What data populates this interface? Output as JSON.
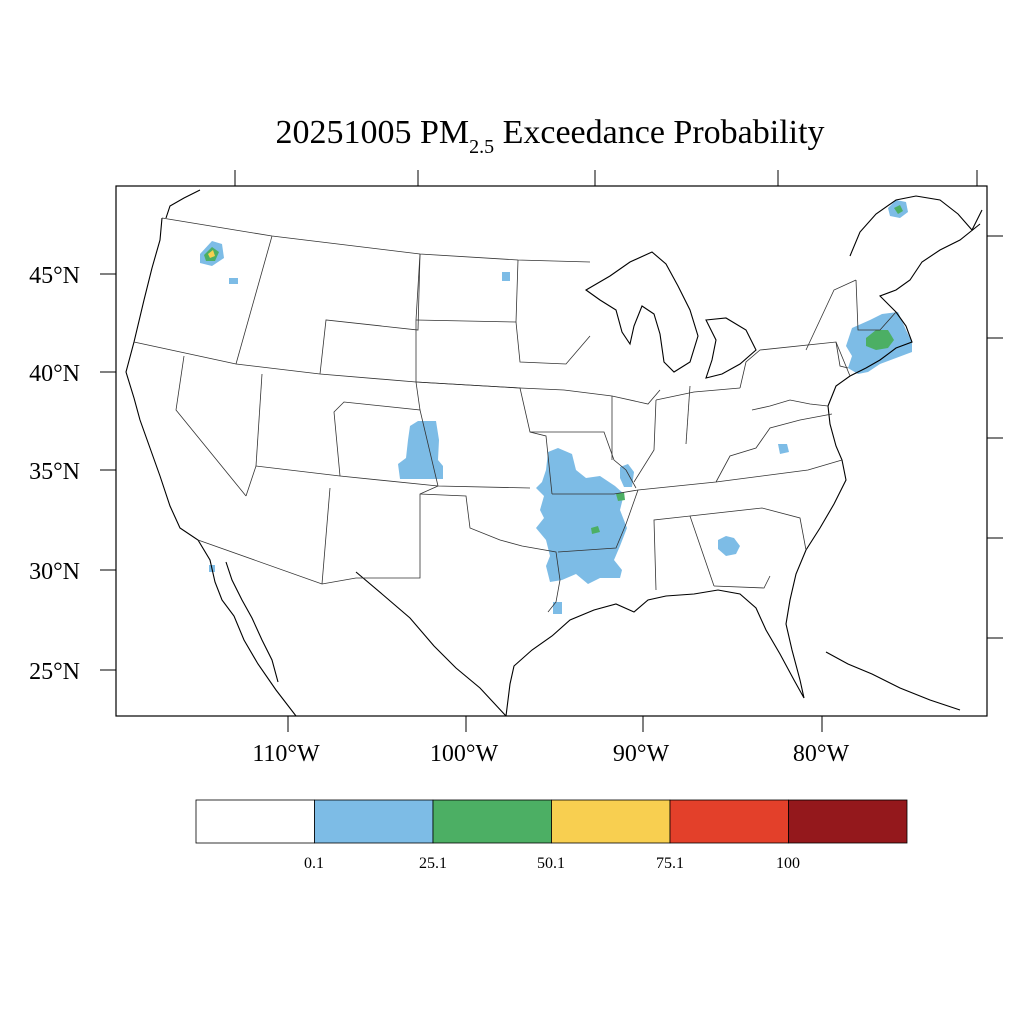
{
  "title": {
    "date": "20251005",
    "pollutant": "PM",
    "subscript": "2.5",
    "suffix": "Exceedance Probability"
  },
  "axes": {
    "latitude_labels": [
      "45°N",
      "40°N",
      "35°N",
      "30°N",
      "25°N"
    ],
    "longitude_labels": [
      "110°W",
      "100°W",
      "90°W",
      "80°W"
    ]
  },
  "colorbar": {
    "colors": [
      "#ffffff",
      "#7dbce6",
      "#4caf64",
      "#f8cf50",
      "#e3402a",
      "#94181c"
    ],
    "tick_labels": [
      "0.1",
      "25.1",
      "50.1",
      "75.1",
      "100"
    ]
  },
  "probability_regions": [
    {
      "name": "northern Idaho",
      "category": 1
    },
    {
      "name": "northern Idaho core",
      "category": 2
    },
    {
      "name": "northern Idaho peak",
      "category": 3
    },
    {
      "name": "Montana spot",
      "category": 1
    },
    {
      "name": "eastern Colorado / western Kansas",
      "category": 1
    },
    {
      "name": "North Dakota spot",
      "category": 1
    },
    {
      "name": "Arkansas / Louisiana / east Texas",
      "category": 1
    },
    {
      "name": "Arkansas core",
      "category": 2
    },
    {
      "name": "Mississippi river spot",
      "category": 2
    },
    {
      "name": "northern Mississippi",
      "category": 1
    },
    {
      "name": "Georgia",
      "category": 1
    },
    {
      "name": "southern Appalachia",
      "category": 1
    },
    {
      "name": "southern New England / Long Island",
      "category": 1
    },
    {
      "name": "southern New England core",
      "category": 2
    },
    {
      "name": "Quebec",
      "category": 1
    },
    {
      "name": "Quebec core",
      "category": 2
    },
    {
      "name": "southern Arizona",
      "category": 1
    },
    {
      "name": "southeast Texas",
      "category": 1
    }
  ]
}
